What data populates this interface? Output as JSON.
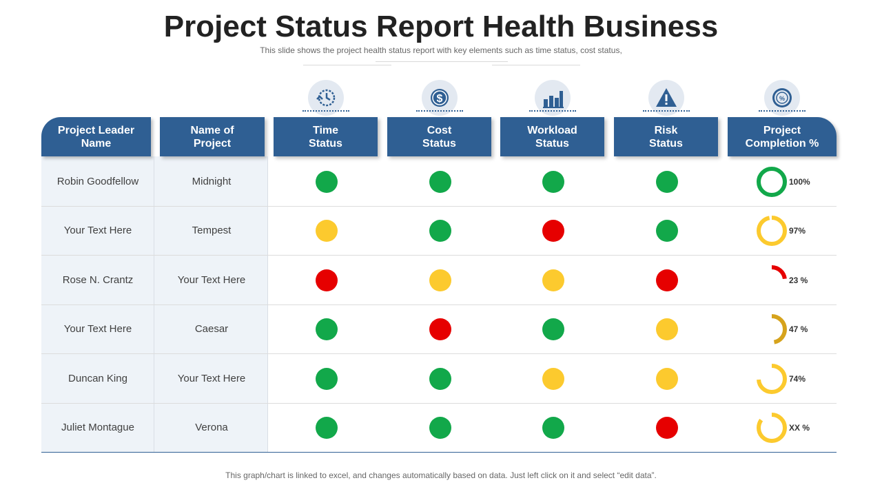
{
  "title": "Project Status Report Health Business",
  "subtitle": "This slide shows the project health status report with key elements such as time status, cost status,",
  "footer": "This graph/chart is linked to excel, and changes automatically based on data. Just left click on it and select “edit data”.",
  "colors": {
    "header_bg": "#2f5f93",
    "green": "#12a84a",
    "yellow": "#fcca2e",
    "red": "#e60000",
    "donut_green": "#12a84a",
    "donut_yellow": "#fcca2e",
    "donut_red": "#e60000",
    "donut_dark_yellow": "#d6a31c"
  },
  "columns": [
    {
      "label": "Project Leader\nName",
      "icon": null
    },
    {
      "label": "Name of\nProject",
      "icon": null
    },
    {
      "label": "Time\nStatus",
      "icon": "clock-check-icon"
    },
    {
      "label": "Cost\nStatus",
      "icon": "dollar-coin-icon"
    },
    {
      "label": "Workload\nStatus",
      "icon": "bar-chart-icon"
    },
    {
      "label": "Risk\nStatus",
      "icon": "warning-triangle-icon"
    },
    {
      "label": "Project\nCompletion %",
      "icon": "gauge-icon"
    }
  ],
  "rows": [
    {
      "leader": "Robin Goodfellow",
      "project": "Midnight",
      "time": "green",
      "cost": "green",
      "workload": "green",
      "risk": "green",
      "completion": 100,
      "completion_label": "100%",
      "completion_color": "donut_green"
    },
    {
      "leader": "Your Text Here",
      "project": "Tempest",
      "time": "yellow",
      "cost": "green",
      "workload": "red",
      "risk": "green",
      "completion": 97,
      "completion_label": "97%",
      "completion_color": "donut_yellow"
    },
    {
      "leader": "Rose N. Crantz",
      "project": "Your Text Here",
      "time": "red",
      "cost": "yellow",
      "workload": "yellow",
      "risk": "red",
      "completion": 23,
      "completion_label": "23 %",
      "completion_color": "donut_red"
    },
    {
      "leader": "Your Text Here",
      "project": "Caesar",
      "time": "green",
      "cost": "red",
      "workload": "green",
      "risk": "yellow",
      "completion": 47,
      "completion_label": "47 %",
      "completion_color": "donut_dark_yellow"
    },
    {
      "leader": "Duncan King",
      "project": "Your Text Here",
      "time": "green",
      "cost": "green",
      "workload": "yellow",
      "risk": "yellow",
      "completion": 74,
      "completion_label": "74%",
      "completion_color": "donut_yellow"
    },
    {
      "leader": "Juliet Montague",
      "project": "Verona",
      "time": "green",
      "cost": "green",
      "workload": "green",
      "risk": "red",
      "completion": 85,
      "completion_label": "XX %",
      "completion_color": "donut_yellow"
    }
  ]
}
